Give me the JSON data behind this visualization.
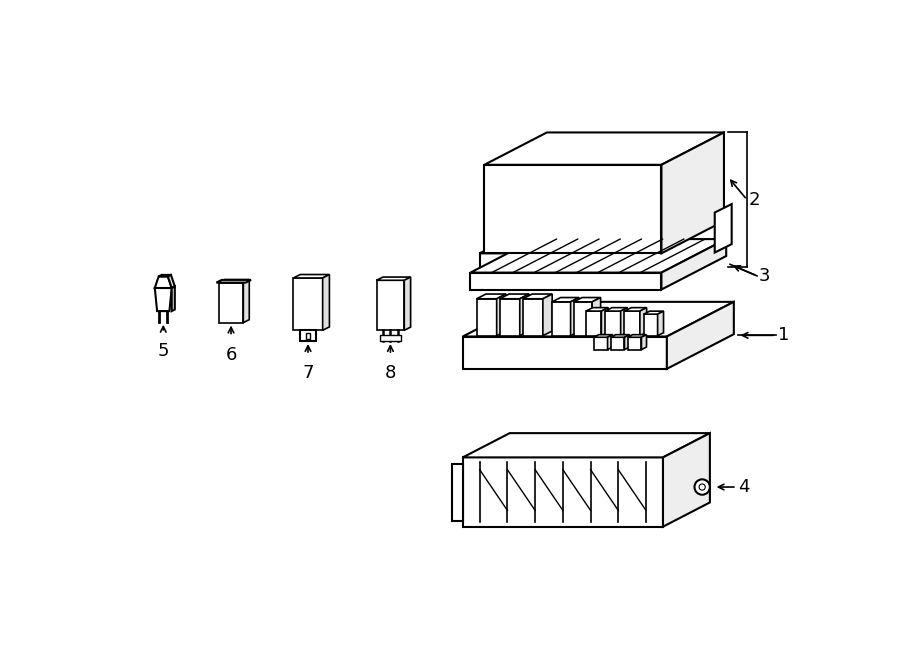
{
  "bg_color": "#ffffff",
  "lc": "#000000",
  "lw": 1.5,
  "gray1": "#f0f0f0",
  "gray2": "#e0e0e0",
  "gray3": "#d0d0d0",
  "gray4": "#c0c0c0",
  "fs_label": 13
}
